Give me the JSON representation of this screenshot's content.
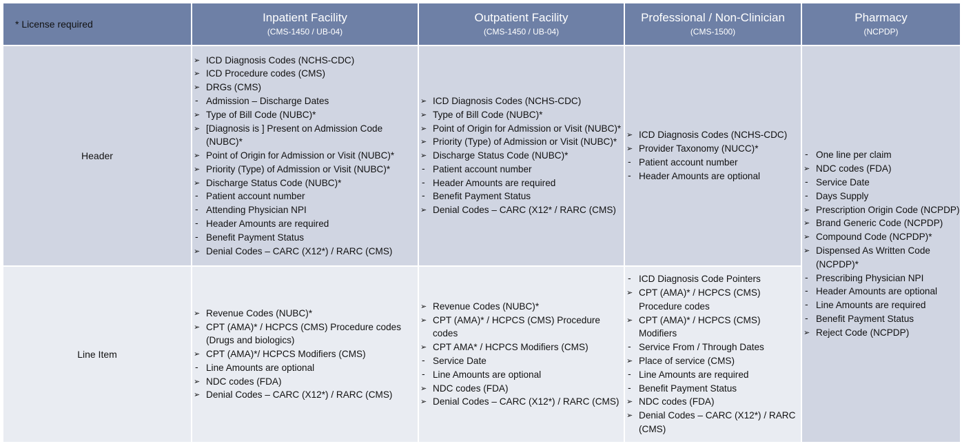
{
  "corner_note": "* License required",
  "columns": [
    {
      "title": "Inpatient Facility",
      "subtitle": "(CMS-1450 / UB-04)"
    },
    {
      "title": "Outpatient Facility",
      "subtitle": "(CMS-1450 / UB-04)"
    },
    {
      "title": "Professional / Non-Clinician",
      "subtitle": "(CMS-1500)"
    },
    {
      "title": "Pharmacy",
      "subtitle": "(NCPDP)"
    }
  ],
  "rows": [
    {
      "label": "Header"
    },
    {
      "label": "Line Item"
    }
  ],
  "cells": {
    "header_inpatient": [
      {
        "bullet": "arrow",
        "text": "ICD Diagnosis Codes (NCHS-CDC)"
      },
      {
        "bullet": "arrow",
        "text": "ICD Procedure codes (CMS)"
      },
      {
        "bullet": "arrow",
        "text": "DRGs (CMS)"
      },
      {
        "bullet": "dash",
        "text": "Admission – Discharge Dates"
      },
      {
        "bullet": "arrow",
        "text": "Type of Bill Code (NUBC)*"
      },
      {
        "bullet": "arrow",
        "text": "[Diagnosis is ] Present on Admission Code (NUBC)*"
      },
      {
        "bullet": "arrow",
        "text": "Point of Origin for Admission or Visit (NUBC)*"
      },
      {
        "bullet": "arrow",
        "text": "Priority (Type) of Admission or Visit (NUBC)*"
      },
      {
        "bullet": "arrow",
        "text": "Discharge Status Code (NUBC)*"
      },
      {
        "bullet": "dash",
        "text": "Patient account number"
      },
      {
        "bullet": "dash",
        "text": "Attending Physician NPI"
      },
      {
        "bullet": "dash",
        "text": "Header Amounts are required"
      },
      {
        "bullet": "dash",
        "text": "Benefit Payment Status"
      },
      {
        "bullet": "arrow",
        "text": "Denial Codes – CARC (X12*) / RARC (CMS)"
      }
    ],
    "header_outpatient": [
      {
        "bullet": "arrow",
        "text": "ICD Diagnosis Codes (NCHS-CDC)"
      },
      {
        "bullet": "arrow",
        "text": "Type of Bill Code (NUBC)*"
      },
      {
        "bullet": "arrow",
        "text": "Point of Origin for Admission or Visit (NUBC)*"
      },
      {
        "bullet": "arrow",
        "text": "Priority (Type) of Admission or Visit (NUBC)*"
      },
      {
        "bullet": "arrow",
        "text": "Discharge Status Code (NUBC)*"
      },
      {
        "bullet": "dash",
        "text": "Patient account number"
      },
      {
        "bullet": "dash",
        "text": "Header Amounts are required"
      },
      {
        "bullet": "dash",
        "text": "Benefit Payment Status"
      },
      {
        "bullet": "arrow",
        "text": "Denial Codes – CARC (X12* / RARC (CMS)"
      }
    ],
    "header_professional": [
      {
        "bullet": "arrow",
        "text": "ICD Diagnosis Codes (NCHS-CDC)"
      },
      {
        "bullet": "arrow",
        "text": "Provider Taxonomy (NUCC)*"
      },
      {
        "bullet": "dash",
        "text": "Patient account number"
      },
      {
        "bullet": "dash",
        "text": "Header Amounts are optional"
      }
    ],
    "line_inpatient": [
      {
        "bullet": "arrow",
        "text": "Revenue Codes (NUBC)*"
      },
      {
        "bullet": "arrow",
        "text": "CPT (AMA)* / HCPCS (CMS) Procedure codes (Drugs and biologics)"
      },
      {
        "bullet": "arrow",
        "text": "CPT (AMA)*/ HCPCS Modifiers (CMS)"
      },
      {
        "bullet": "dash",
        "text": "Line Amounts are optional"
      },
      {
        "bullet": "arrow",
        "text": "NDC codes (FDA)"
      },
      {
        "bullet": "arrow",
        "text": "Denial Codes – CARC (X12*) / RARC (CMS)"
      }
    ],
    "line_outpatient": [
      {
        "bullet": "arrow",
        "text": "Revenue Codes (NUBC)*"
      },
      {
        "bullet": "arrow",
        "text": "CPT (AMA)* / HCPCS (CMS) Procedure codes"
      },
      {
        "bullet": "arrow",
        "text": "CPT AMA* / HCPCS Modifiers (CMS)"
      },
      {
        "bullet": "dash",
        "text": "Service Date"
      },
      {
        "bullet": "dash",
        "text": "Line Amounts are optional"
      },
      {
        "bullet": "arrow",
        "text": "NDC codes (FDA)"
      },
      {
        "bullet": "arrow",
        "text": "Denial Codes – CARC (X12*) / RARC (CMS)"
      }
    ],
    "line_professional": [
      {
        "bullet": "dash",
        "text": "ICD Diagnosis Code Pointers"
      },
      {
        "bullet": "arrow",
        "text": "CPT (AMA)* / HCPCS (CMS) Procedure codes"
      },
      {
        "bullet": "arrow",
        "text": "CPT (AMA)* / HCPCS (CMS) Modifiers"
      },
      {
        "bullet": "dash",
        "text": "Service From / Through Dates"
      },
      {
        "bullet": "arrow",
        "text": "Place of service (CMS)"
      },
      {
        "bullet": "dash",
        "text": "Line Amounts are required"
      },
      {
        "bullet": "dash",
        "text": "Benefit Payment Status"
      },
      {
        "bullet": "arrow",
        "text": "NDC codes (FDA)"
      },
      {
        "bullet": "arrow",
        "text": "Denial Codes – CARC (X12*) / RARC (CMS)"
      }
    ],
    "pharmacy": [
      {
        "bullet": "dash",
        "text": "One line per claim"
      },
      {
        "bullet": "arrow",
        "text": "NDC codes (FDA)"
      },
      {
        "bullet": "dash",
        "text": "Service Date"
      },
      {
        "bullet": "dash",
        "text": "Days Supply"
      },
      {
        "bullet": "arrow",
        "text": "Prescription Origin Code (NCPDP)"
      },
      {
        "bullet": "arrow",
        "text": "Brand Generic Code  (NCPDP)"
      },
      {
        "bullet": "arrow",
        "text": "Compound Code (NCPDP)*"
      },
      {
        "bullet": "arrow",
        "text": "Dispensed As Written Code (NCPDP)*"
      },
      {
        "bullet": "dash",
        "text": "Prescribing  Physician NPI"
      },
      {
        "bullet": "dash",
        "text": "Header Amounts are optional"
      },
      {
        "bullet": "dash",
        "text": "Line Amounts are required"
      },
      {
        "bullet": "dash",
        "text": "Benefit Payment Status"
      },
      {
        "bullet": "arrow",
        "text": "Reject Code (NCPDP)"
      }
    ]
  },
  "colors": {
    "header_fill": "#6e80a6",
    "header_row_fill": "#d0d5e2",
    "line_row_fill": "#e9ecf2"
  }
}
